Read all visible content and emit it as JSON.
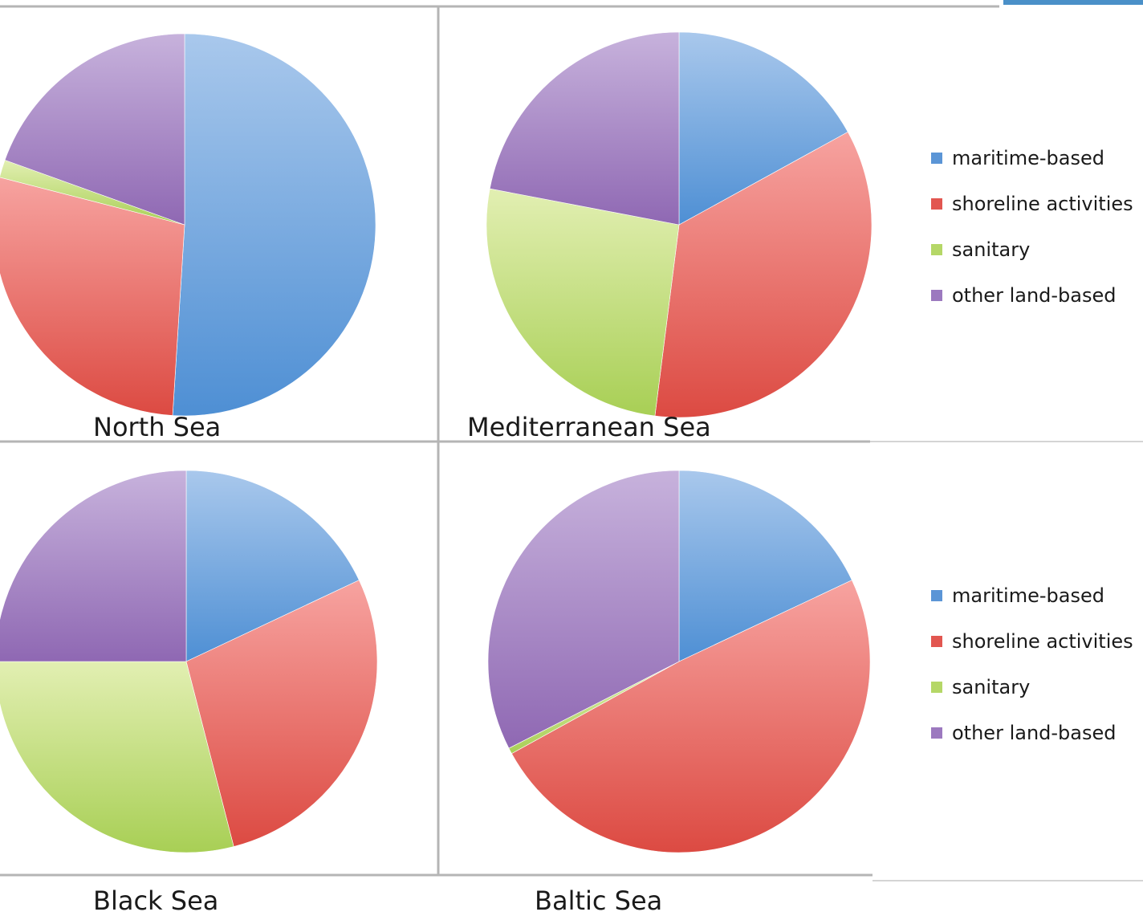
{
  "colors": {
    "maritime-based": [
      "#a9c8ec",
      "#4e8fd4"
    ],
    "shoreline activities": [
      "#f7a3a0",
      "#dc4a42"
    ],
    "sanitary": [
      "#e2efb2",
      "#a8cf55"
    ],
    "other land-based": [
      "#c7b2dc",
      "#8f68b3"
    ]
  },
  "legends": [
    {
      "items": [
        "maritime-based",
        "shoreline activities",
        "sanitary",
        "other land-based"
      ]
    },
    {
      "items": [
        "maritime-based",
        "shoreline activities",
        "sanitary",
        "other land-based"
      ]
    }
  ],
  "chart_data": [
    {
      "type": "pie",
      "title": "North Sea",
      "labels": [
        "maritime-based",
        "shoreline activities",
        "sanitary",
        "other land-based"
      ],
      "values": [
        51,
        28,
        1.5,
        19.5
      ]
    },
    {
      "type": "pie",
      "title": "Mediterranean Sea",
      "labels": [
        "maritime-based",
        "shoreline activities",
        "sanitary",
        "other land-based"
      ],
      "values": [
        17,
        35,
        26,
        22
      ]
    },
    {
      "type": "pie",
      "title": "Black Sea",
      "labels": [
        "maritime-based",
        "shoreline activities",
        "sanitary",
        "other land-based"
      ],
      "values": [
        18,
        28,
        29,
        25
      ]
    },
    {
      "type": "pie",
      "title": "Baltic Sea",
      "labels": [
        "maritime-based",
        "shoreline activities",
        "sanitary",
        "other land-based"
      ],
      "values": [
        18,
        49,
        0.5,
        32.5
      ]
    }
  ]
}
